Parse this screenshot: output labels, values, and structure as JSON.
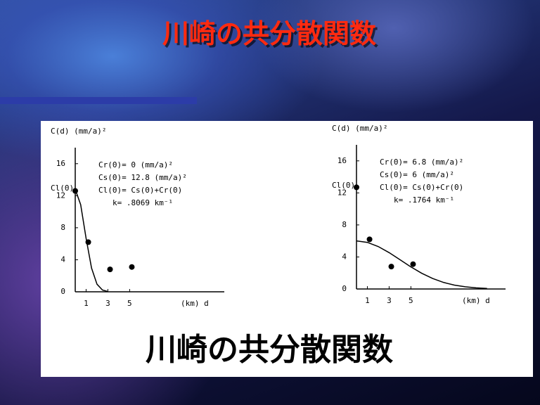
{
  "title": "川崎の共分散関数",
  "caption": "川崎の共分散関数",
  "chart_data": [
    {
      "type": "scatter",
      "y_label": "C(d) (mm/a)²",
      "x_label": "(km) d",
      "y_marker_label": "Cl(0)",
      "annotations": [
        "Cr(0)= 0 (mm/a)²",
        "Cs(0)= 12.8 (mm/a)²",
        "Cl(0)= Cs(0)+Cr(0)",
        "k= .8069 km⁻¹"
      ],
      "xlim": [
        0,
        13.7
      ],
      "ylim": [
        0,
        18
      ],
      "xticks": [
        1,
        3,
        5
      ],
      "yticks": [
        0,
        4,
        8,
        12,
        16
      ],
      "series": [
        {
          "mode": "markers",
          "color": "#000000",
          "x": [
            0,
            1.2,
            3.2,
            5.2
          ],
          "values": [
            12.6,
            6.2,
            2.8,
            3.1
          ]
        },
        {
          "mode": "line",
          "color": "#000000",
          "x": [
            0,
            0.5,
            1,
            1.5,
            2,
            2.5,
            3
          ],
          "values": [
            12.8,
            10.88,
            6.66,
            2.96,
            0.95,
            0.22,
            0.04
          ]
        }
      ]
    },
    {
      "type": "scatter",
      "y_label": "C(d) (mm/a)²",
      "x_label": "(km) d",
      "y_marker_label": "Cl(0)",
      "annotations": [
        "Cr(0)= 6.8 (mm/a)²",
        "Cs(0)= 6 (mm/a)²",
        "Cl(0)= Cs(0)+Cr(0)",
        "k= .1764 km⁻¹"
      ],
      "xlim": [
        0,
        13.7
      ],
      "ylim": [
        0,
        18
      ],
      "xticks": [
        1,
        3,
        5
      ],
      "yticks": [
        0,
        4,
        8,
        12,
        16
      ],
      "series": [
        {
          "mode": "markers",
          "color": "#000000",
          "x": [
            0,
            1.2,
            3.2,
            5.2
          ],
          "values": [
            12.7,
            6.2,
            2.8,
            3.1
          ]
        },
        {
          "mode": "line",
          "color": "#000000",
          "x": [
            0,
            1,
            2,
            3,
            4,
            5,
            6,
            7,
            8,
            9,
            10,
            11,
            12
          ],
          "values": [
            6,
            5.82,
            5.3,
            4.54,
            3.65,
            2.76,
            1.96,
            1.31,
            0.82,
            0.48,
            0.27,
            0.14,
            0.07
          ]
        }
      ]
    }
  ]
}
